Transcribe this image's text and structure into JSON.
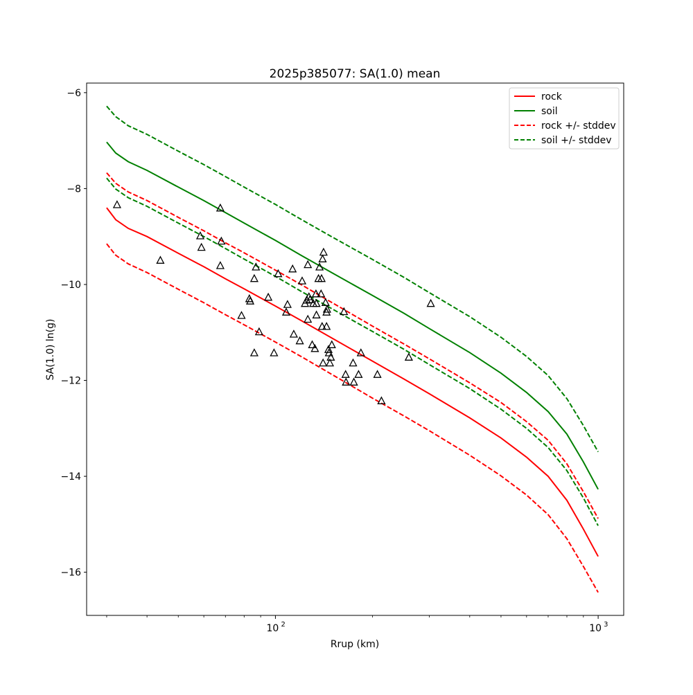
{
  "chart_data": {
    "type": "scatter",
    "title": "2025p385077: SA(1.0) mean",
    "xlabel": "Rrup (km)",
    "ylabel": "SA(1.0) ln(g)",
    "xscale": "log",
    "xlim": [
      26,
      1200
    ],
    "ylim": [
      -16.9,
      -5.8
    ],
    "grid": false,
    "legend_position": "top-right",
    "x_major_ticks": [
      {
        "value": 100,
        "label": "10",
        "exp": "2"
      },
      {
        "value": 1000,
        "label": "10",
        "exp": "3"
      }
    ],
    "x_minor_ticks": [
      30,
      40,
      50,
      60,
      70,
      80,
      90,
      200,
      300,
      400,
      500,
      600,
      700,
      800,
      900
    ],
    "y_ticks": [
      {
        "value": -16,
        "label": "−16"
      },
      {
        "value": -14,
        "label": "−14"
      },
      {
        "value": -12,
        "label": "−12"
      },
      {
        "value": -10,
        "label": "−10"
      },
      {
        "value": -8,
        "label": "−8"
      },
      {
        "value": -6,
        "label": "−6"
      }
    ],
    "x": [
      30,
      32,
      35,
      40,
      50,
      60,
      70,
      80,
      90,
      100,
      120,
      150,
      200,
      250,
      300,
      400,
      500,
      600,
      700,
      800,
      900,
      1000
    ],
    "series": [
      {
        "name": "rock",
        "color": "#ff0000",
        "dash": "solid",
        "values": [
          -8.4,
          -8.65,
          -8.83,
          -9.0,
          -9.35,
          -9.63,
          -9.88,
          -10.09,
          -10.28,
          -10.45,
          -10.75,
          -11.12,
          -11.6,
          -11.97,
          -12.28,
          -12.78,
          -13.2,
          -13.6,
          -14.0,
          -14.5,
          -15.1,
          -15.67
        ]
      },
      {
        "name": "soil",
        "color": "#008000",
        "dash": "solid",
        "values": [
          -7.03,
          -7.26,
          -7.44,
          -7.62,
          -7.97,
          -8.25,
          -8.5,
          -8.72,
          -8.91,
          -9.08,
          -9.39,
          -9.76,
          -10.23,
          -10.6,
          -10.92,
          -11.42,
          -11.85,
          -12.25,
          -12.65,
          -13.12,
          -13.7,
          -14.27
        ]
      },
      {
        "name": "rock +/- stddev",
        "color": "#ff0000",
        "dash": "dashed",
        "values": [
          -7.67,
          -7.89,
          -8.07,
          -8.25,
          -8.6,
          -8.88,
          -9.13,
          -9.34,
          -9.53,
          -9.7,
          -10.0,
          -10.38,
          -10.87,
          -11.24,
          -11.55,
          -12.05,
          -12.46,
          -12.86,
          -13.25,
          -13.74,
          -14.32,
          -14.88
        ]
      },
      {
        "name": "",
        "color": "#ff0000",
        "dash": "dashed",
        "values": [
          -9.15,
          -9.39,
          -9.57,
          -9.75,
          -10.1,
          -10.38,
          -10.63,
          -10.84,
          -11.03,
          -11.2,
          -11.5,
          -11.88,
          -12.37,
          -12.74,
          -13.05,
          -13.56,
          -13.99,
          -14.39,
          -14.8,
          -15.3,
          -15.88,
          -16.42
        ]
      },
      {
        "name": "soil +/- stddev",
        "color": "#008000",
        "dash": "dashed",
        "values": [
          -6.28,
          -6.5,
          -6.69,
          -6.87,
          -7.22,
          -7.5,
          -7.75,
          -7.97,
          -8.16,
          -8.33,
          -8.64,
          -9.01,
          -9.48,
          -9.85,
          -10.17,
          -10.67,
          -11.1,
          -11.5,
          -11.9,
          -12.38,
          -12.94,
          -13.49
        ]
      },
      {
        "name": "",
        "color": "#008000",
        "dash": "dashed",
        "values": [
          -7.78,
          -8.01,
          -8.19,
          -8.37,
          -8.72,
          -9.0,
          -9.25,
          -9.47,
          -9.66,
          -9.83,
          -10.14,
          -10.51,
          -10.98,
          -11.35,
          -11.67,
          -12.17,
          -12.6,
          -13.0,
          -13.4,
          -13.88,
          -14.45,
          -15.03
        ]
      }
    ],
    "observations": [
      {
        "x": 32.3,
        "y": -8.34
      },
      {
        "x": 44,
        "y": -9.5
      },
      {
        "x": 58.5,
        "y": -8.99
      },
      {
        "x": 59,
        "y": -9.23
      },
      {
        "x": 67.5,
        "y": -8.41
      },
      {
        "x": 67.5,
        "y": -9.61
      },
      {
        "x": 68,
        "y": -9.1
      },
      {
        "x": 78.5,
        "y": -10.65
      },
      {
        "x": 83,
        "y": -10.3
      },
      {
        "x": 83.5,
        "y": -10.35
      },
      {
        "x": 86,
        "y": -9.88
      },
      {
        "x": 86,
        "y": -11.43
      },
      {
        "x": 87,
        "y": -9.64
      },
      {
        "x": 89,
        "y": -10.99
      },
      {
        "x": 95,
        "y": -10.27
      },
      {
        "x": 99,
        "y": -11.43
      },
      {
        "x": 102,
        "y": -9.78
      },
      {
        "x": 108,
        "y": -10.58
      },
      {
        "x": 109,
        "y": -10.42
      },
      {
        "x": 113,
        "y": -9.68
      },
      {
        "x": 114,
        "y": -11.04
      },
      {
        "x": 119,
        "y": -11.18
      },
      {
        "x": 121,
        "y": -9.93
      },
      {
        "x": 123.5,
        "y": -10.4
      },
      {
        "x": 125,
        "y": -10.33
      },
      {
        "x": 126,
        "y": -9.59
      },
      {
        "x": 126,
        "y": -10.73
      },
      {
        "x": 127,
        "y": -10.26
      },
      {
        "x": 128,
        "y": -10.32
      },
      {
        "x": 130,
        "y": -11.26
      },
      {
        "x": 131,
        "y": -10.4
      },
      {
        "x": 132.5,
        "y": -11.34
      },
      {
        "x": 133.5,
        "y": -10.2
      },
      {
        "x": 134,
        "y": -10.4
      },
      {
        "x": 134,
        "y": -10.64
      },
      {
        "x": 136,
        "y": -9.88
      },
      {
        "x": 137,
        "y": -9.64
      },
      {
        "x": 138.5,
        "y": -10.2
      },
      {
        "x": 139,
        "y": -9.88
      },
      {
        "x": 139.5,
        "y": -10.88
      },
      {
        "x": 140,
        "y": -9.47
      },
      {
        "x": 140.5,
        "y": -11.64
      },
      {
        "x": 141,
        "y": -9.33
      },
      {
        "x": 143,
        "y": -10.38
      },
      {
        "x": 144,
        "y": -10.88
      },
      {
        "x": 144,
        "y": -10.58
      },
      {
        "x": 144.5,
        "y": -10.52
      },
      {
        "x": 146,
        "y": -11.36
      },
      {
        "x": 146.5,
        "y": -11.43
      },
      {
        "x": 147.5,
        "y": -11.64
      },
      {
        "x": 148.5,
        "y": -11.52
      },
      {
        "x": 149.5,
        "y": -11.26
      },
      {
        "x": 163,
        "y": -10.57
      },
      {
        "x": 165,
        "y": -11.88
      },
      {
        "x": 165.5,
        "y": -12.04
      },
      {
        "x": 174,
        "y": -11.64
      },
      {
        "x": 175,
        "y": -12.04
      },
      {
        "x": 181,
        "y": -11.88
      },
      {
        "x": 184,
        "y": -11.43
      },
      {
        "x": 207,
        "y": -11.88
      },
      {
        "x": 213,
        "y": -12.43
      },
      {
        "x": 259,
        "y": -11.52
      },
      {
        "x": 303,
        "y": -10.4
      }
    ]
  }
}
